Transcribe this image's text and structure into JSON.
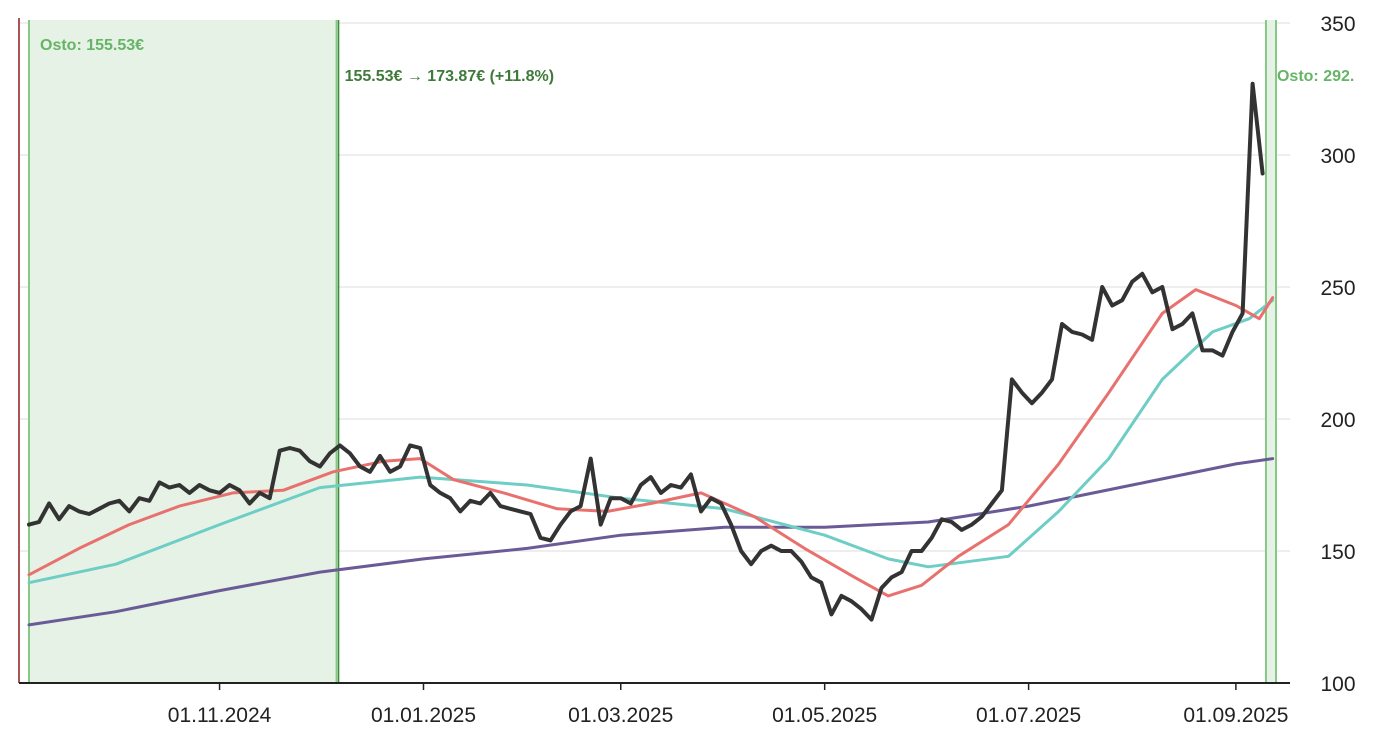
{
  "chart_data": {
    "type": "line",
    "ylim": [
      100,
      350
    ],
    "y_ticks": [
      100,
      150,
      200,
      250,
      300,
      350
    ],
    "x_range": [
      "2024-09-05",
      "2025-09-13"
    ],
    "x_ticks": [
      {
        "date": "2024-11-01",
        "label": "01.11.2024"
      },
      {
        "date": "2025-01-01",
        "label": "01.01.2025"
      },
      {
        "date": "2025-03-01",
        "label": "01.03.2025"
      },
      {
        "date": "2025-05-01",
        "label": "01.05.2025"
      },
      {
        "date": "2025-07-01",
        "label": "01.07.2025"
      },
      {
        "date": "2025-09-01",
        "label": "01.09.2025"
      }
    ],
    "grid": true,
    "y_axis_side": "right",
    "holding_periods": [
      {
        "start": "2024-09-05",
        "end": "2024-12-06",
        "label": "Osto: 155.53€",
        "result_label": "155.53€ → 173.87€ (+11.8%)"
      },
      {
        "start": "2025-09-10",
        "end": "2025-09-13",
        "label": "Osto: 292.",
        "result_label": ""
      }
    ],
    "series": [
      {
        "role": "price",
        "color": "#333333",
        "points": [
          [
            "2024-09-05",
            160
          ],
          [
            "2024-09-08",
            161
          ],
          [
            "2024-09-11",
            168
          ],
          [
            "2024-09-14",
            162
          ],
          [
            "2024-09-17",
            167
          ],
          [
            "2024-09-20",
            165
          ],
          [
            "2024-09-23",
            164
          ],
          [
            "2024-09-26",
            166
          ],
          [
            "2024-09-29",
            168
          ],
          [
            "2024-10-02",
            169
          ],
          [
            "2024-10-05",
            165
          ],
          [
            "2024-10-08",
            170
          ],
          [
            "2024-10-11",
            169
          ],
          [
            "2024-10-14",
            176
          ],
          [
            "2024-10-17",
            174
          ],
          [
            "2024-10-20",
            175
          ],
          [
            "2024-10-23",
            172
          ],
          [
            "2024-10-26",
            175
          ],
          [
            "2024-10-29",
            173
          ],
          [
            "2024-11-01",
            172
          ],
          [
            "2024-11-04",
            175
          ],
          [
            "2024-11-07",
            173
          ],
          [
            "2024-11-10",
            168
          ],
          [
            "2024-11-13",
            172
          ],
          [
            "2024-11-16",
            170
          ],
          [
            "2024-11-19",
            188
          ],
          [
            "2024-11-22",
            189
          ],
          [
            "2024-11-25",
            188
          ],
          [
            "2024-11-28",
            184
          ],
          [
            "2024-12-01",
            182
          ],
          [
            "2024-12-04",
            187
          ],
          [
            "2024-12-07",
            190
          ],
          [
            "2024-12-10",
            187
          ],
          [
            "2024-12-13",
            182
          ],
          [
            "2024-12-16",
            180
          ],
          [
            "2024-12-19",
            186
          ],
          [
            "2024-12-22",
            180
          ],
          [
            "2024-12-25",
            182
          ],
          [
            "2024-12-28",
            190
          ],
          [
            "2024-12-31",
            189
          ],
          [
            "2025-01-03",
            175
          ],
          [
            "2025-01-06",
            172
          ],
          [
            "2025-01-09",
            170
          ],
          [
            "2025-01-12",
            165
          ],
          [
            "2025-01-15",
            169
          ],
          [
            "2025-01-18",
            168
          ],
          [
            "2025-01-21",
            172
          ],
          [
            "2025-01-24",
            167
          ],
          [
            "2025-01-27",
            166
          ],
          [
            "2025-01-30",
            165
          ],
          [
            "2025-02-02",
            164
          ],
          [
            "2025-02-05",
            155
          ],
          [
            "2025-02-08",
            154
          ],
          [
            "2025-02-11",
            160
          ],
          [
            "2025-02-14",
            165
          ],
          [
            "2025-02-17",
            167
          ],
          [
            "2025-02-20",
            185
          ],
          [
            "2025-02-23",
            160
          ],
          [
            "2025-02-26",
            170
          ],
          [
            "2025-03-01",
            170
          ],
          [
            "2025-03-04",
            168
          ],
          [
            "2025-03-07",
            175
          ],
          [
            "2025-03-10",
            178
          ],
          [
            "2025-03-13",
            172
          ],
          [
            "2025-03-16",
            175
          ],
          [
            "2025-03-19",
            174
          ],
          [
            "2025-03-22",
            179
          ],
          [
            "2025-03-25",
            165
          ],
          [
            "2025-03-28",
            170
          ],
          [
            "2025-03-31",
            168
          ],
          [
            "2025-04-03",
            160
          ],
          [
            "2025-04-06",
            150
          ],
          [
            "2025-04-09",
            145
          ],
          [
            "2025-04-12",
            150
          ],
          [
            "2025-04-15",
            152
          ],
          [
            "2025-04-18",
            150
          ],
          [
            "2025-04-21",
            150
          ],
          [
            "2025-04-24",
            146
          ],
          [
            "2025-04-27",
            140
          ],
          [
            "2025-04-30",
            138
          ],
          [
            "2025-05-03",
            126
          ],
          [
            "2025-05-06",
            133
          ],
          [
            "2025-05-09",
            131
          ],
          [
            "2025-05-12",
            128
          ],
          [
            "2025-05-15",
            124
          ],
          [
            "2025-05-18",
            136
          ],
          [
            "2025-05-21",
            140
          ],
          [
            "2025-05-24",
            142
          ],
          [
            "2025-05-27",
            150
          ],
          [
            "2025-05-30",
            150
          ],
          [
            "2025-06-02",
            155
          ],
          [
            "2025-06-05",
            162
          ],
          [
            "2025-06-08",
            161
          ],
          [
            "2025-06-11",
            158
          ],
          [
            "2025-06-14",
            160
          ],
          [
            "2025-06-17",
            163
          ],
          [
            "2025-06-20",
            168
          ],
          [
            "2025-06-23",
            173
          ],
          [
            "2025-06-26",
            215
          ],
          [
            "2025-06-29",
            210
          ],
          [
            "2025-07-02",
            206
          ],
          [
            "2025-07-05",
            210
          ],
          [
            "2025-07-08",
            215
          ],
          [
            "2025-07-11",
            236
          ],
          [
            "2025-07-14",
            233
          ],
          [
            "2025-07-17",
            232
          ],
          [
            "2025-07-20",
            230
          ],
          [
            "2025-07-23",
            250
          ],
          [
            "2025-07-26",
            243
          ],
          [
            "2025-07-29",
            245
          ],
          [
            "2025-08-01",
            252
          ],
          [
            "2025-08-04",
            255
          ],
          [
            "2025-08-07",
            248
          ],
          [
            "2025-08-10",
            250
          ],
          [
            "2025-08-13",
            234
          ],
          [
            "2025-08-16",
            236
          ],
          [
            "2025-08-19",
            240
          ],
          [
            "2025-08-22",
            226
          ],
          [
            "2025-08-25",
            226
          ],
          [
            "2025-08-28",
            224
          ],
          [
            "2025-08-31",
            233
          ],
          [
            "2025-09-03",
            240
          ],
          [
            "2025-09-06",
            327
          ],
          [
            "2025-09-09",
            293
          ]
        ]
      },
      {
        "role": "moving-average-fast",
        "color": "#e8716e",
        "points": [
          [
            "2024-09-05",
            141
          ],
          [
            "2024-09-20",
            151
          ],
          [
            "2024-10-05",
            160
          ],
          [
            "2024-10-20",
            167
          ],
          [
            "2024-11-05",
            172
          ],
          [
            "2024-11-20",
            173
          ],
          [
            "2024-12-05",
            180
          ],
          [
            "2024-12-20",
            184
          ],
          [
            "2024-12-31",
            185
          ],
          [
            "2025-01-10",
            177
          ],
          [
            "2025-01-25",
            172
          ],
          [
            "2025-02-10",
            166
          ],
          [
            "2025-02-25",
            165
          ],
          [
            "2025-03-10",
            168
          ],
          [
            "2025-03-25",
            172
          ],
          [
            "2025-04-10",
            163
          ],
          [
            "2025-04-25",
            151
          ],
          [
            "2025-05-10",
            140
          ],
          [
            "2025-05-20",
            133
          ],
          [
            "2025-05-30",
            137
          ],
          [
            "2025-06-10",
            148
          ],
          [
            "2025-06-25",
            160
          ],
          [
            "2025-07-10",
            183
          ],
          [
            "2025-07-25",
            210
          ],
          [
            "2025-08-10",
            240
          ],
          [
            "2025-08-20",
            249
          ],
          [
            "2025-09-01",
            243
          ],
          [
            "2025-09-08",
            238
          ],
          [
            "2025-09-12",
            246
          ]
        ]
      },
      {
        "role": "moving-average-medium",
        "color": "#6ecdc4",
        "points": [
          [
            "2024-09-05",
            138
          ],
          [
            "2024-10-01",
            145
          ],
          [
            "2024-11-01",
            160
          ],
          [
            "2024-12-01",
            174
          ],
          [
            "2024-12-31",
            178
          ],
          [
            "2025-02-01",
            175
          ],
          [
            "2025-03-01",
            170
          ],
          [
            "2025-04-01",
            166
          ],
          [
            "2025-05-01",
            156
          ],
          [
            "2025-05-20",
            147
          ],
          [
            "2025-06-01",
            144
          ],
          [
            "2025-06-25",
            148
          ],
          [
            "2025-07-10",
            165
          ],
          [
            "2025-07-25",
            185
          ],
          [
            "2025-08-10",
            215
          ],
          [
            "2025-08-25",
            233
          ],
          [
            "2025-09-05",
            238
          ],
          [
            "2025-09-12",
            245
          ]
        ]
      },
      {
        "role": "moving-average-slow",
        "color": "#6a5b96",
        "points": [
          [
            "2024-09-05",
            122
          ],
          [
            "2024-10-01",
            127
          ],
          [
            "2024-11-01",
            135
          ],
          [
            "2024-12-01",
            142
          ],
          [
            "2025-01-01",
            147
          ],
          [
            "2025-02-01",
            151
          ],
          [
            "2025-03-01",
            156
          ],
          [
            "2025-04-01",
            159
          ],
          [
            "2025-05-01",
            159
          ],
          [
            "2025-06-01",
            161
          ],
          [
            "2025-07-01",
            167
          ],
          [
            "2025-08-01",
            175
          ],
          [
            "2025-09-01",
            183
          ],
          [
            "2025-09-12",
            185
          ]
        ]
      }
    ]
  }
}
